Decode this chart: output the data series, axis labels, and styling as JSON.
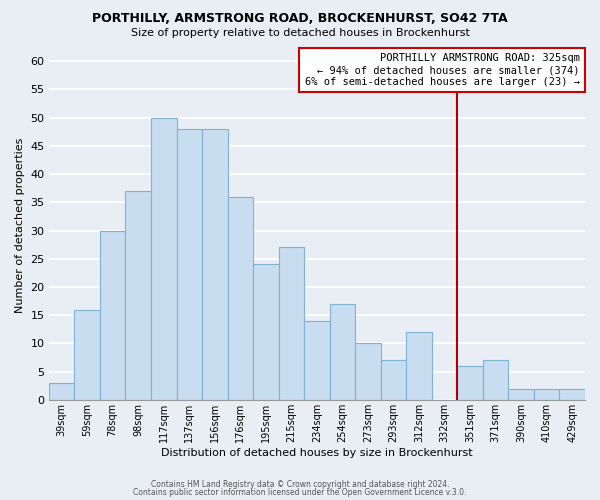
{
  "title": "PORTHILLY, ARMSTRONG ROAD, BROCKENHURST, SO42 7TA",
  "subtitle": "Size of property relative to detached houses in Brockenhurst",
  "xlabel": "Distribution of detached houses by size in Brockenhurst",
  "ylabel": "Number of detached properties",
  "footer1": "Contains HM Land Registry data © Crown copyright and database right 2024.",
  "footer2": "Contains public sector information licensed under the Open Government Licence v.3.0.",
  "bin_labels": [
    "39sqm",
    "59sqm",
    "78sqm",
    "98sqm",
    "117sqm",
    "137sqm",
    "156sqm",
    "176sqm",
    "195sqm",
    "215sqm",
    "234sqm",
    "254sqm",
    "273sqm",
    "293sqm",
    "312sqm",
    "332sqm",
    "351sqm",
    "371sqm",
    "390sqm",
    "410sqm",
    "429sqm"
  ],
  "bar_values": [
    3,
    16,
    30,
    37,
    50,
    48,
    48,
    36,
    24,
    27,
    14,
    17,
    10,
    7,
    12,
    0,
    6,
    7,
    2,
    2,
    2
  ],
  "bar_color": "#c8ddef",
  "bar_edge_color": "#7fb3d3",
  "background_color": "#e8eef4",
  "grid_color": "#ffffff",
  "vline_color": "#aa0000",
  "annotation_title": "PORTHILLY ARMSTRONG ROAD: 325sqm",
  "annotation_line1": "← 94% of detached houses are smaller (374)",
  "annotation_line2": "6% of semi-detached houses are larger (23) →",
  "annotation_box_edge_color": "#cc0000",
  "ylim": [
    0,
    62
  ],
  "yticks": [
    0,
    5,
    10,
    15,
    20,
    25,
    30,
    35,
    40,
    45,
    50,
    55,
    60
  ],
  "vline_x": 15.5
}
